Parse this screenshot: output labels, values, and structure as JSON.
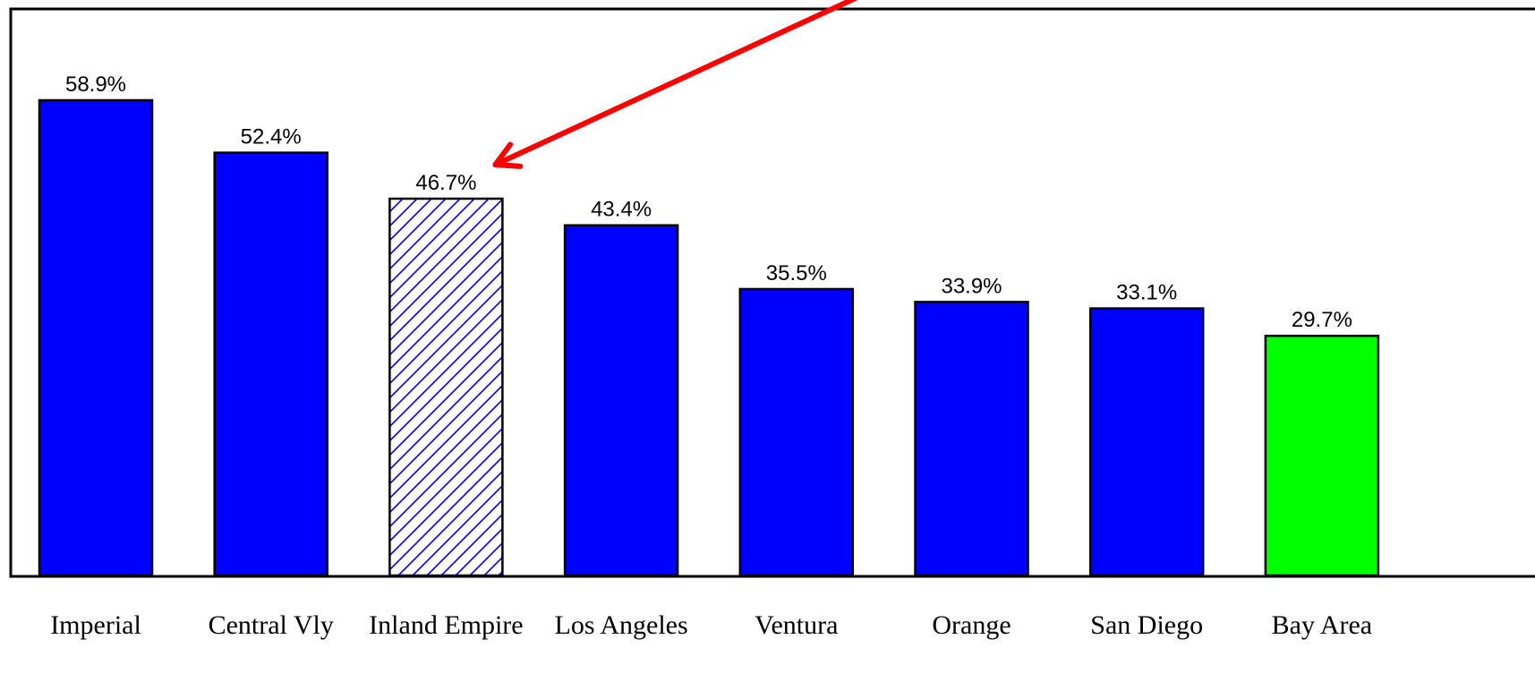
{
  "chart_data": {
    "type": "bar",
    "categories": [
      "Imperial",
      "Central Vly",
      "Inland Empire",
      "Los Angeles",
      "Ventura",
      "Orange",
      "San Diego",
      "Bay Area"
    ],
    "values": [
      58.9,
      52.4,
      46.7,
      43.4,
      35.5,
      33.9,
      33.1,
      29.7
    ],
    "value_labels": [
      "58.9%",
      "52.4%",
      "46.7%",
      "43.4%",
      "35.5%",
      "33.9%",
      "33.1%",
      "29.7%"
    ],
    "ylim": [
      0,
      65
    ],
    "grid": false,
    "legend": "none",
    "colors": {
      "default": "#0000ff",
      "highlight_pattern": "#0000ff",
      "bay_area": "#00ff00",
      "annotation_arrow": "#ff0000"
    },
    "bar_styles": [
      "solid",
      "solid",
      "hatched",
      "solid",
      "solid",
      "solid",
      "solid",
      "solid-green"
    ],
    "annotation": {
      "type": "arrow",
      "target_category": "Inland Empire",
      "color": "#ff0000"
    }
  }
}
